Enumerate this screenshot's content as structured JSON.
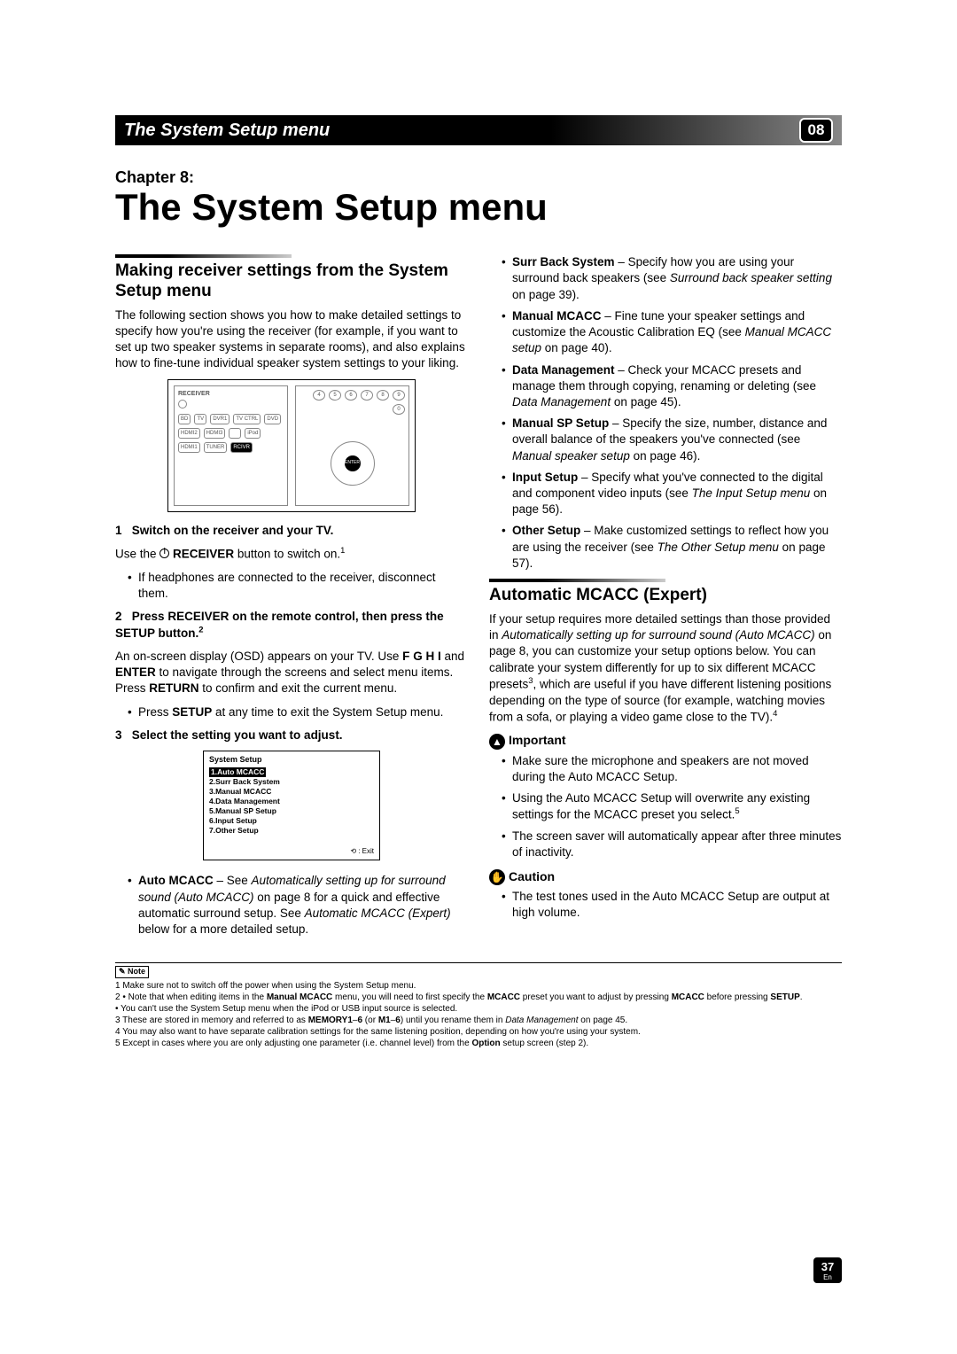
{
  "header": {
    "title": "The System Setup menu",
    "badge": "08"
  },
  "chapter": {
    "label": "Chapter 8:",
    "title": "The System Setup menu"
  },
  "left": {
    "h2": "Making receiver settings from the System Setup menu",
    "intro": "The following section shows you how to make detailed settings to specify how you're using the receiver (for example, if you want to set up two speaker systems in separate rooms), and also explains how to fine-tune individual speaker system settings to your liking.",
    "remote": {
      "receiver_label": "RECEIVER",
      "buttons_left": [
        "BD",
        "TV",
        "DVR1",
        "TV CTRL",
        "DVD",
        "HDMI2",
        "HDMI3",
        "",
        "iPod",
        "HDMI1",
        "TUNER",
        "RCIVR"
      ],
      "num_keys": [
        "4",
        "5",
        "6",
        "7",
        "8",
        "9",
        "0"
      ],
      "enter": "ENTER"
    },
    "step1": {
      "num": "1",
      "title": "Switch on the receiver and your TV."
    },
    "step1_body_a": "Use the ",
    "step1_body_b": " RECEIVER",
    "step1_body_c": " button to switch on.",
    "step1_sup": "1",
    "step1_bullet": "If headphones are connected to the receiver, disconnect them.",
    "step2": {
      "num": "2",
      "title": "Press RECEIVER on the remote control, then press the SETUP button.",
      "sup": "2"
    },
    "step2_body": "An on-screen display (OSD) appears on your TV. Use  F  G  H  I and ENTER to navigate through the screens and select menu items. Press RETURN to confirm and exit the current menu.",
    "step2_bullet_a": "Press ",
    "step2_bullet_b": "SETUP",
    "step2_bullet_c": " at any time to exit the System Setup menu.",
    "step3": {
      "num": "3",
      "title": "Select the setting you want to adjust."
    },
    "osd": {
      "title": "System  Setup",
      "items": [
        "1.Auto  MCACC",
        "2.Surr  Back  System",
        "3.Manual  MCACC",
        "4.Data  Management",
        "5.Manual  SP  Setup",
        "6.Input  Setup",
        "7.Other  Setup"
      ],
      "exit": ": Exit"
    },
    "auto_mcacc": {
      "label": "Auto MCACC",
      "text_a": " – See ",
      "text_i1": "Automatically setting up for surround sound (Auto MCACC)",
      "text_b": " on page 8 for a quick and effective automatic surround setup. See ",
      "text_i2": "Automatic MCACC (Expert)",
      "text_c": " below for a more detailed setup."
    }
  },
  "right": {
    "items": [
      {
        "label": "Surr Back System",
        "text_a": " – Specify how you are using your surround back speakers (see ",
        "ital": "Surround back speaker setting",
        "text_b": " on page 39)."
      },
      {
        "label": "Manual MCACC",
        "text_a": " – Fine tune your speaker settings and customize the Acoustic Calibration EQ (see ",
        "ital": "Manual MCACC setup",
        "text_b": " on page 40)."
      },
      {
        "label": "Data Management",
        "text_a": " – Check your MCACC presets and manage them through copying, renaming or deleting (see ",
        "ital": "Data Management",
        "text_b": " on page 45)."
      },
      {
        "label": "Manual SP Setup",
        "text_a": " – Specify the size, number, distance and overall balance of the speakers you've connected (see ",
        "ital": "Manual speaker setup",
        "text_b": " on page 46)."
      },
      {
        "label": "Input Setup",
        "text_a": " – Specify what you've connected to the digital and component video inputs (see ",
        "ital": "The Input Setup menu",
        "text_b": " on page 56)."
      },
      {
        "label": "Other Setup",
        "text_a": " – Make customized settings to reflect how you are using the receiver (see ",
        "ital": "The Other Setup menu",
        "text_b": " on page 57)."
      }
    ],
    "h2": "Automatic MCACC (Expert)",
    "p1_a": "If your setup requires more detailed settings than those provided in ",
    "p1_i": "Automatically setting up for surround sound (Auto MCACC)",
    "p1_b": " on page 8, you can customize your setup options below. You can calibrate your system differently for up to six different MCACC presets",
    "p1_sup": "3",
    "p1_c": ", which are useful if you have different listening positions depending on the type of source (for example, watching movies from a sofa, or playing a video game close to the TV).",
    "p1_sup2": "4",
    "important": {
      "label": "Important",
      "bullets": [
        "Make sure the microphone and speakers are not moved during the Auto MCACC Setup.",
        "Using the Auto MCACC Setup will overwrite any existing settings for the MCACC preset you select.",
        "The screen saver will automatically appear after three minutes of inactivity."
      ],
      "sup_on": 1,
      "sup": "5"
    },
    "caution": {
      "label": "Caution",
      "bullets": [
        "The test tones used in the Auto MCACC Setup are output at high volume."
      ]
    }
  },
  "notes": {
    "tag": "Note",
    "lines": [
      "1 Make sure not to switch off the power when using the System Setup menu.",
      "2 • Note that when editing items in the Manual MCACC menu, you will need to first specify the MCACC preset you want to adjust by pressing MCACC before pressing SETUP.",
      "   • You can't use the System Setup menu when the iPod or USB input source is selected.",
      "3 These are stored in memory and referred to as MEMORY1–6 (or M1–6) until you rename them in Data Management on page 45.",
      "4 You may also want to have separate calibration settings for the same listening position, depending on how you're using your system.",
      "5 Except in cases where you are only adjusting one parameter (i.e. channel level) from the Option setup screen (step 2)."
    ]
  },
  "page": {
    "num": "37",
    "lang": "En"
  },
  "colors": {
    "black": "#000000",
    "white": "#ffffff",
    "grad_mid": "#888888"
  }
}
